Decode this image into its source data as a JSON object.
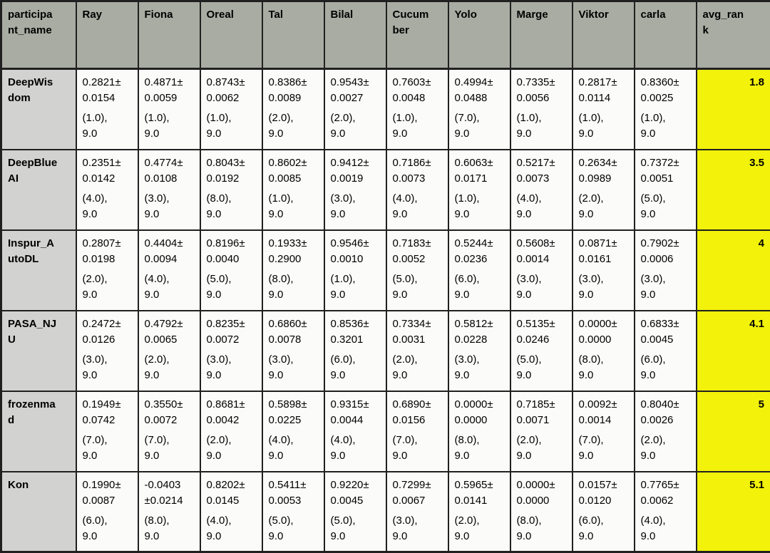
{
  "colors": {
    "header_bg": "#a9aca2",
    "name_column_bg": "#d2d2d0",
    "cell_bg": "#fbfbfa",
    "avg_rank_bg": "#f2f20a",
    "border": "#202020",
    "text": "#000000"
  },
  "chart_data": {
    "type": "table",
    "columns": [
      "participant_name",
      "Ray",
      "Fiona",
      "Oreal",
      "Tal",
      "Bilal",
      "Cucumber",
      "Yolo",
      "Marge",
      "Viktor",
      "carla",
      "avg_rank"
    ],
    "columns_display": [
      "participa\nnt_name",
      "Ray",
      "Fiona",
      "Oreal",
      "Tal",
      "Bilal",
      "Cucum\nber",
      "Yolo",
      "Marge",
      "Viktor",
      "carla",
      "avg_ran\nk"
    ],
    "rows": [
      {
        "participant_name": "DeepWisdom",
        "participant_name_display": "DeepWis\ndom",
        "avg_rank": "1.8",
        "cells": [
          [
            "0.2821±\n0.0154",
            "(1.0),\n9.0"
          ],
          [
            "0.4871±\n0.0059",
            "(1.0),\n9.0"
          ],
          [
            "0.8743±\n0.0062",
            "(1.0),\n9.0"
          ],
          [
            "0.8386±\n0.0089",
            "(2.0),\n9.0"
          ],
          [
            "0.9543±\n0.0027",
            "(2.0),\n9.0"
          ],
          [
            "0.7603±\n0.0048",
            "(1.0),\n9.0"
          ],
          [
            "0.4994±\n0.0488",
            "(7.0),\n9.0"
          ],
          [
            "0.7335±\n0.0056",
            "(1.0),\n9.0"
          ],
          [
            "0.2817±\n0.0114",
            "(1.0),\n9.0"
          ],
          [
            "0.8360±\n0.0025",
            "(1.0),\n9.0"
          ]
        ]
      },
      {
        "participant_name": "DeepBlueAI",
        "participant_name_display": "DeepBlue\nAI",
        "avg_rank": "3.5",
        "cells": [
          [
            "0.2351±\n0.0142",
            "(4.0),\n9.0"
          ],
          [
            "0.4774±\n0.0108",
            "(3.0),\n9.0"
          ],
          [
            "0.8043±\n0.0192",
            "(8.0),\n9.0"
          ],
          [
            "0.8602±\n0.0085",
            "(1.0),\n9.0"
          ],
          [
            "0.9412±\n0.0019",
            "(3.0),\n9.0"
          ],
          [
            "0.7186±\n0.0073",
            "(4.0),\n9.0"
          ],
          [
            "0.6063±\n0.0171",
            "(1.0),\n9.0"
          ],
          [
            "0.5217±\n0.0073",
            "(4.0),\n9.0"
          ],
          [
            "0.2634±\n0.0989",
            "(2.0),\n9.0"
          ],
          [
            "0.7372±\n0.0051",
            "(5.0),\n9.0"
          ]
        ]
      },
      {
        "participant_name": "Inspur_AutoDL",
        "participant_name_display": "Inspur_A\nutoDL",
        "avg_rank": "4",
        "cells": [
          [
            "0.2807±\n0.0198",
            "(2.0),\n9.0"
          ],
          [
            "0.4404±\n0.0094",
            "(4.0),\n9.0"
          ],
          [
            "0.8196±\n0.0040",
            "(5.0),\n9.0"
          ],
          [
            "0.1933±\n0.2900",
            "(8.0),\n9.0"
          ],
          [
            "0.9546±\n0.0010",
            "(1.0),\n9.0"
          ],
          [
            "0.7183±\n0.0052",
            "(5.0),\n9.0"
          ],
          [
            "0.5244±\n0.0236",
            "(6.0),\n9.0"
          ],
          [
            "0.5608±\n0.0014",
            "(3.0),\n9.0"
          ],
          [
            "0.0871±\n0.0161",
            "(3.0),\n9.0"
          ],
          [
            "0.7902±\n0.0006",
            "(3.0),\n9.0"
          ]
        ]
      },
      {
        "participant_name": "PASA_NJU",
        "participant_name_display": "PASA_NJ\nU",
        "avg_rank": "4.1",
        "cells": [
          [
            "0.2472±\n0.0126",
            "(3.0),\n9.0"
          ],
          [
            "0.4792±\n0.0065",
            "(2.0),\n9.0"
          ],
          [
            "0.8235±\n0.0072",
            "(3.0),\n9.0"
          ],
          [
            "0.6860±\n0.0078",
            "(3.0),\n9.0"
          ],
          [
            "0.8536±\n0.3201",
            "(6.0),\n9.0"
          ],
          [
            "0.7334±\n0.0031",
            "(2.0),\n9.0"
          ],
          [
            "0.5812±\n0.0228",
            "(3.0),\n9.0"
          ],
          [
            "0.5135±\n0.0246",
            "(5.0),\n9.0"
          ],
          [
            "0.0000±\n0.0000",
            "(8.0),\n9.0"
          ],
          [
            "0.6833±\n0.0045",
            "(6.0),\n9.0"
          ]
        ]
      },
      {
        "participant_name": "frozenmad",
        "participant_name_display": "frozenma\nd",
        "avg_rank": "5",
        "cells": [
          [
            "0.1949±\n0.0742",
            "(7.0),\n9.0"
          ],
          [
            "0.3550±\n0.0072",
            "(7.0),\n9.0"
          ],
          [
            "0.8681±\n0.0042",
            "(2.0),\n9.0"
          ],
          [
            "0.5898±\n0.0225",
            "(4.0),\n9.0"
          ],
          [
            "0.9315±\n0.0044",
            "(4.0),\n9.0"
          ],
          [
            "0.6890±\n0.0156",
            "(7.0),\n9.0"
          ],
          [
            "0.0000±\n0.0000",
            "(8.0),\n9.0"
          ],
          [
            "0.7185±\n0.0071",
            "(2.0),\n9.0"
          ],
          [
            "0.0092±\n0.0014",
            "(7.0),\n9.0"
          ],
          [
            "0.8040±\n0.0026",
            "(2.0),\n9.0"
          ]
        ]
      },
      {
        "participant_name": "Kon",
        "participant_name_display": "Kon",
        "avg_rank": "5.1",
        "cells": [
          [
            "0.1990±\n0.0087",
            "(6.0),\n9.0"
          ],
          [
            "-0.0403\n±0.0214",
            "(8.0),\n9.0"
          ],
          [
            "0.8202±\n0.0145",
            "(4.0),\n9.0"
          ],
          [
            "0.5411±\n0.0053",
            "(5.0),\n9.0"
          ],
          [
            "0.9220±\n0.0045",
            "(5.0),\n9.0"
          ],
          [
            "0.7299±\n0.0067",
            "(3.0),\n9.0"
          ],
          [
            "0.5965±\n0.0141",
            "(2.0),\n9.0"
          ],
          [
            "0.0000±\n0.0000",
            "(8.0),\n9.0"
          ],
          [
            "0.0157±\n0.0120",
            "(6.0),\n9.0"
          ],
          [
            "0.7765±\n0.0062",
            "(4.0),\n9.0"
          ]
        ]
      }
    ]
  }
}
